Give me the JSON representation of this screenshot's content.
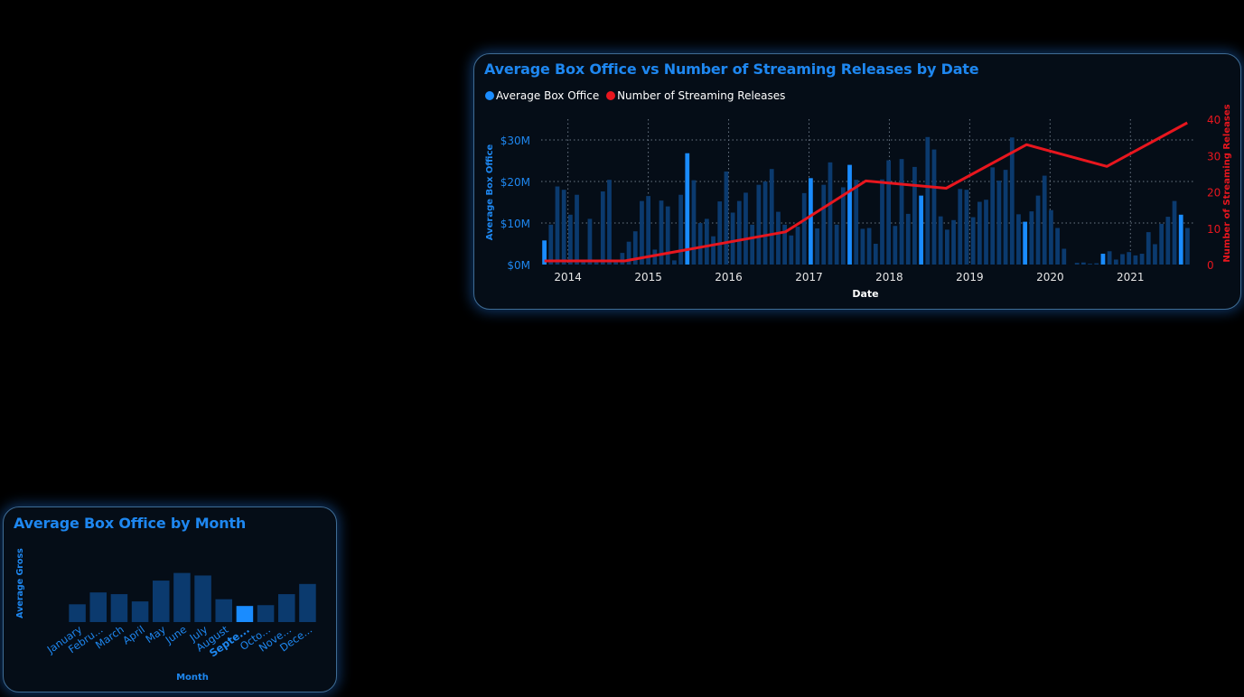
{
  "colors": {
    "bar": "#0b3a6e",
    "bar_highlight": "#1a8cff",
    "line": "#e8161e",
    "title": "#1e87f0",
    "axis_left": "#1e87f0",
    "axis_right": "#e8161e",
    "grid": "#6b7785"
  },
  "chart_data": [
    {
      "type": "bar+line",
      "title": "Average Box Office vs Number of Streaming Releases by Date",
      "xlabel": "Date",
      "ylabel": "Average Box Office",
      "y2label": "Number of Streaming Releases",
      "ylim": [
        0,
        35000000
      ],
      "y2lim": [
        0,
        40
      ],
      "y_ticks": [
        "$0M",
        "$10M",
        "$20M",
        "$30M"
      ],
      "y2_ticks": [
        "0",
        "10",
        "20",
        "30",
        "40"
      ],
      "x_ticks": [
        "2014",
        "2015",
        "2016",
        "2017",
        "2018",
        "2019",
        "2020",
        "2021"
      ],
      "legend": [
        "Average Box Office",
        "Number of Streaming Releases"
      ],
      "legend_position": "top-left",
      "grid": true,
      "x_start": "2013-09",
      "x_end": "2021-09",
      "bar_series": {
        "name": "Average Box Office",
        "unit": "$M",
        "values": [
          5.8,
          9.6,
          18.8,
          18.0,
          12.0,
          16.8,
          1.2,
          11.0,
          0.8,
          17.6,
          20.4,
          0.6,
          2.8,
          5.5,
          8.0,
          15.3,
          16.5,
          3.6,
          15.4,
          14.0,
          1.0,
          16.8,
          26.8,
          20.3,
          10.0,
          11.0,
          6.8,
          15.2,
          22.4,
          12.5,
          15.3,
          17.3,
          9.6,
          19.2,
          20.0,
          23.0,
          12.7,
          9.6,
          7.0,
          9.1,
          17.2,
          20.8,
          8.7,
          19.2,
          24.6,
          9.6,
          18.6,
          24.0,
          20.4,
          8.6,
          8.8,
          5.0,
          20.5,
          25.1,
          9.3,
          25.4,
          12.2,
          23.5,
          16.6,
          30.7,
          27.7,
          11.6,
          8.4,
          10.7,
          18.2,
          18.0,
          11.4,
          15.1,
          15.6,
          23.4,
          20.2,
          22.8,
          30.6,
          12.1,
          10.3,
          12.8,
          16.6,
          21.4,
          13.1,
          8.8,
          3.8,
          0.0,
          0.4,
          0.5,
          0.2,
          0.3,
          2.6,
          3.2,
          1.2,
          2.5,
          3.0,
          2.2,
          2.6,
          7.8,
          4.9,
          9.8,
          11.5,
          15.3,
          12.0,
          8.8
        ]
      },
      "bar_highlight_indices": [
        0,
        22,
        41,
        47,
        58,
        74,
        86,
        98
      ],
      "line_series": {
        "name": "Number of Streaming Releases",
        "x": [
          "2013-09",
          "2014-09",
          "2016-09",
          "2017-09",
          "2018-09",
          "2019-09",
          "2020-09",
          "2021-09"
        ],
        "values": [
          1,
          1,
          9,
          23,
          21,
          33,
          27,
          39
        ]
      }
    },
    {
      "type": "bar",
      "title": "Average Box Office by Month",
      "xlabel": "Month",
      "ylabel": "Average Gross",
      "categories": [
        "January",
        "Febru...",
        "March",
        "April",
        "May",
        "June",
        "July",
        "August",
        "Septe...",
        "Octo...",
        "Nove...",
        "Dece..."
      ],
      "values": [
        10.5,
        17.5,
        16.5,
        12.2,
        24.5,
        29.0,
        27.5,
        13.5,
        9.5,
        10.0,
        16.5,
        22.5
      ],
      "ylim": [
        0,
        32
      ],
      "highlight_index": 8
    }
  ]
}
